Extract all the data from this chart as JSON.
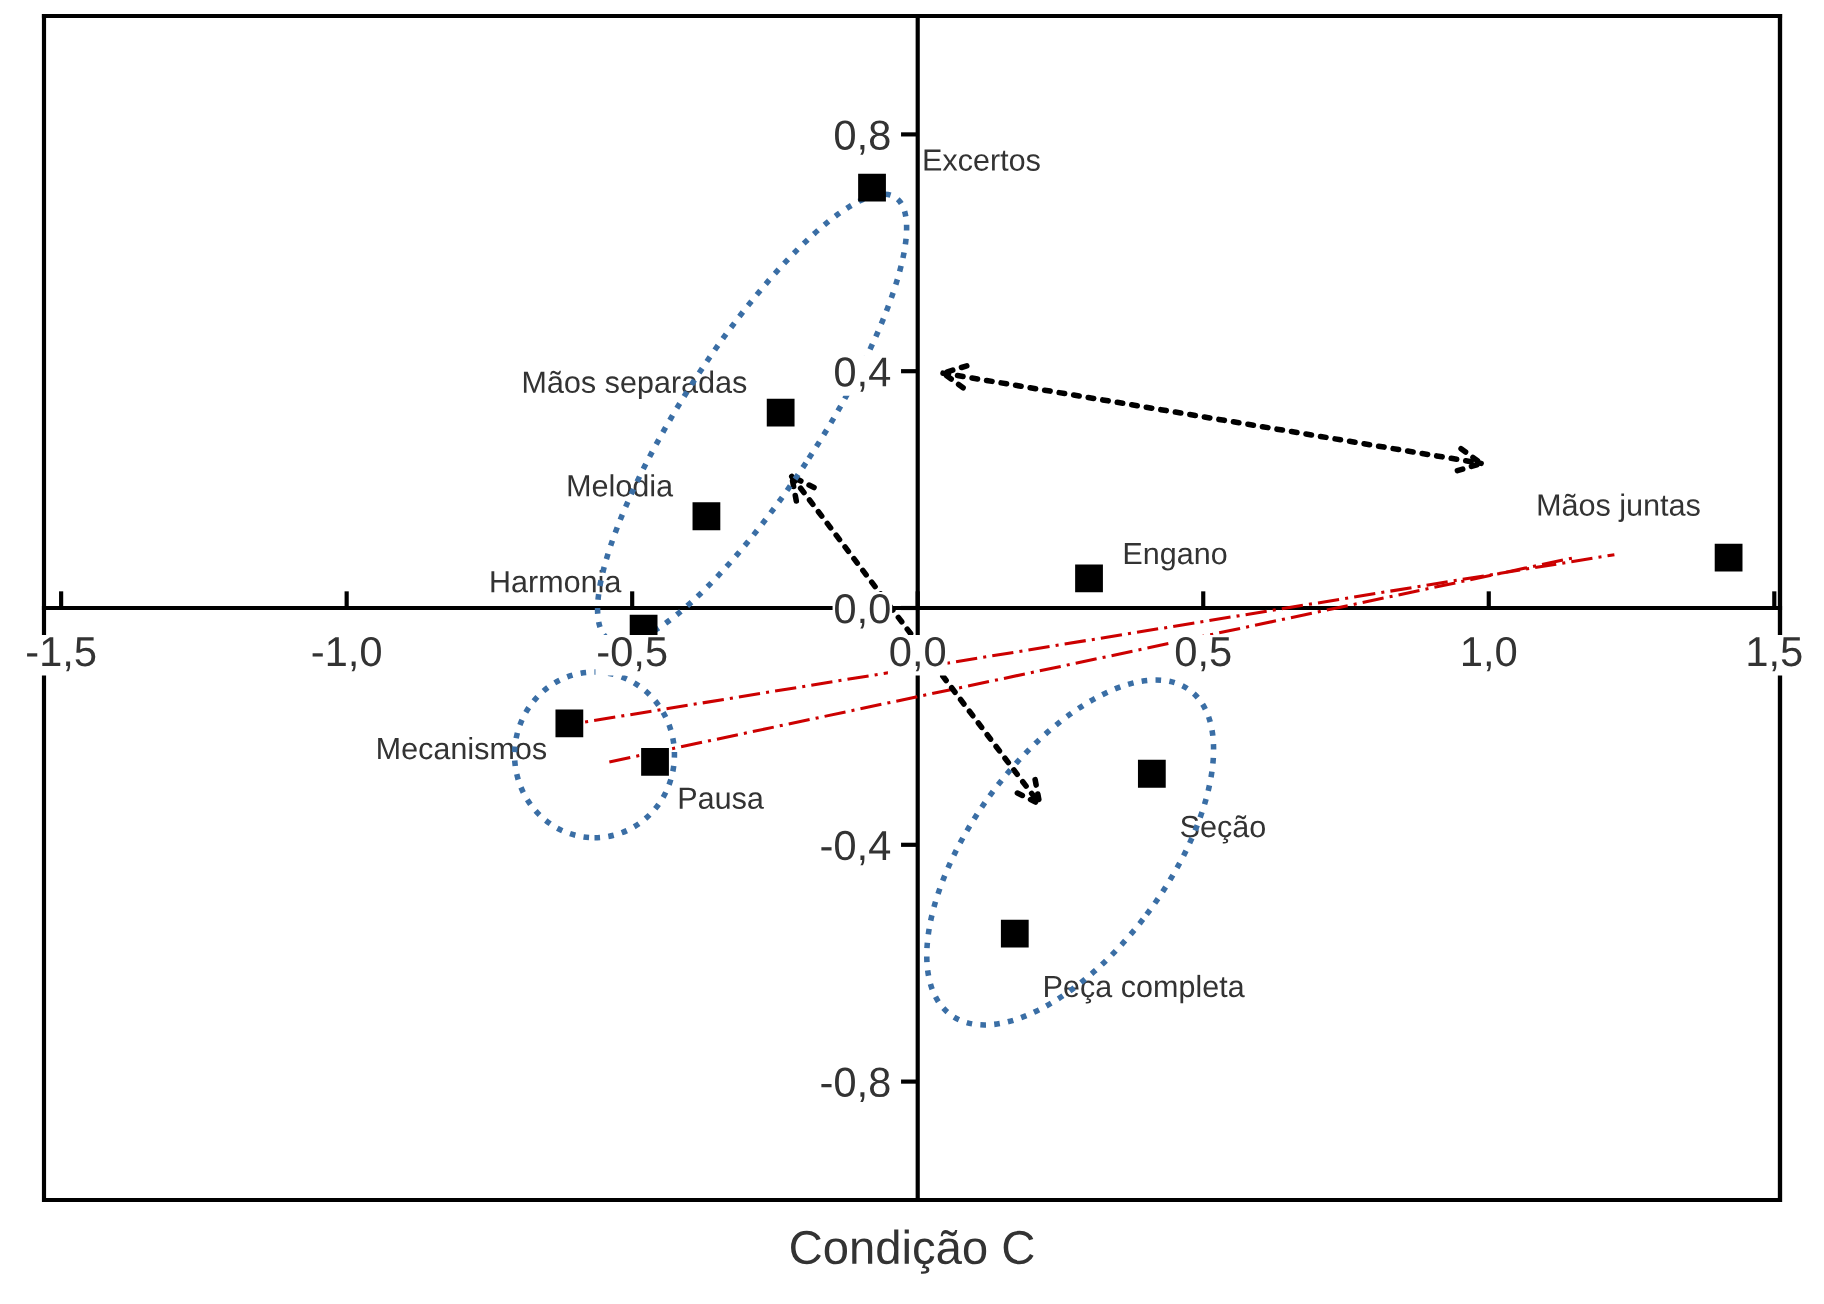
{
  "chart_data": {
    "type": "scatter",
    "xlabel": "Condição C",
    "marker": "square",
    "grid": false,
    "legend": false,
    "xlim": [
      -1.53,
      1.51
    ],
    "ylim": [
      -1.0,
      1.0
    ],
    "xticks": [
      {
        "value": -1.5,
        "label": "-1,5"
      },
      {
        "value": -1.0,
        "label": "-1,0"
      },
      {
        "value": -0.5,
        "label": "-0,5"
      },
      {
        "value": 0.0,
        "label": "0,0"
      },
      {
        "value": 0.5,
        "label": "0,5"
      },
      {
        "value": 1.0,
        "label": "1,0"
      },
      {
        "value": 1.5,
        "label": "1,5"
      }
    ],
    "yticks": [
      {
        "value": -0.8,
        "label": "-0,8"
      },
      {
        "value": -0.4,
        "label": "-0,4"
      },
      {
        "value": 0.0,
        "label": "0,0"
      },
      {
        "value": 0.4,
        "label": "0,4"
      },
      {
        "value": 0.8,
        "label": "0,8"
      }
    ],
    "series": [
      {
        "name": "Excertos",
        "color": "#000000",
        "x": [
          -0.08
        ],
        "values": [
          0.71
        ]
      },
      {
        "name": "Mãos separadas",
        "color": "#000000",
        "x": [
          -0.24
        ],
        "values": [
          0.33
        ]
      },
      {
        "name": "Melodia",
        "color": "#000000",
        "x": [
          -0.37
        ],
        "values": [
          0.155
        ]
      },
      {
        "name": "Harmonia",
        "color": "#000000",
        "x": [
          -0.48
        ],
        "values": [
          -0.035
        ]
      },
      {
        "name": "Mecanismos",
        "color": "#000000",
        "x": [
          -0.61
        ],
        "values": [
          -0.195
        ]
      },
      {
        "name": "Pausa",
        "color": "#000000",
        "x": [
          -0.46
        ],
        "values": [
          -0.26
        ]
      },
      {
        "name": "Engano",
        "color": "#000000",
        "x": [
          0.3
        ],
        "values": [
          0.05
        ]
      },
      {
        "name": "Mãos juntas",
        "color": "#000000",
        "x": [
          1.42
        ],
        "values": [
          0.085
        ]
      },
      {
        "name": "Seção",
        "color": "#000000",
        "x": [
          0.41
        ],
        "values": [
          -0.28
        ]
      },
      {
        "name": "Peça completa",
        "color": "#000000",
        "x": [
          0.17
        ],
        "values": [
          -0.55
        ]
      },
      {
        "type": "line",
        "color": "#cc0000",
        "line_style": "dashed",
        "marker": "none",
        "x": [
          -0.63,
          1.22
        ],
        "values": [
          -0.2,
          0.09
        ]
      },
      {
        "type": "line",
        "color": "#cc0000",
        "line_style": "dashed",
        "marker": "none",
        "x": [
          -0.54,
          1.15
        ],
        "values": [
          -0.26,
          0.085
        ]
      }
    ]
  }
}
